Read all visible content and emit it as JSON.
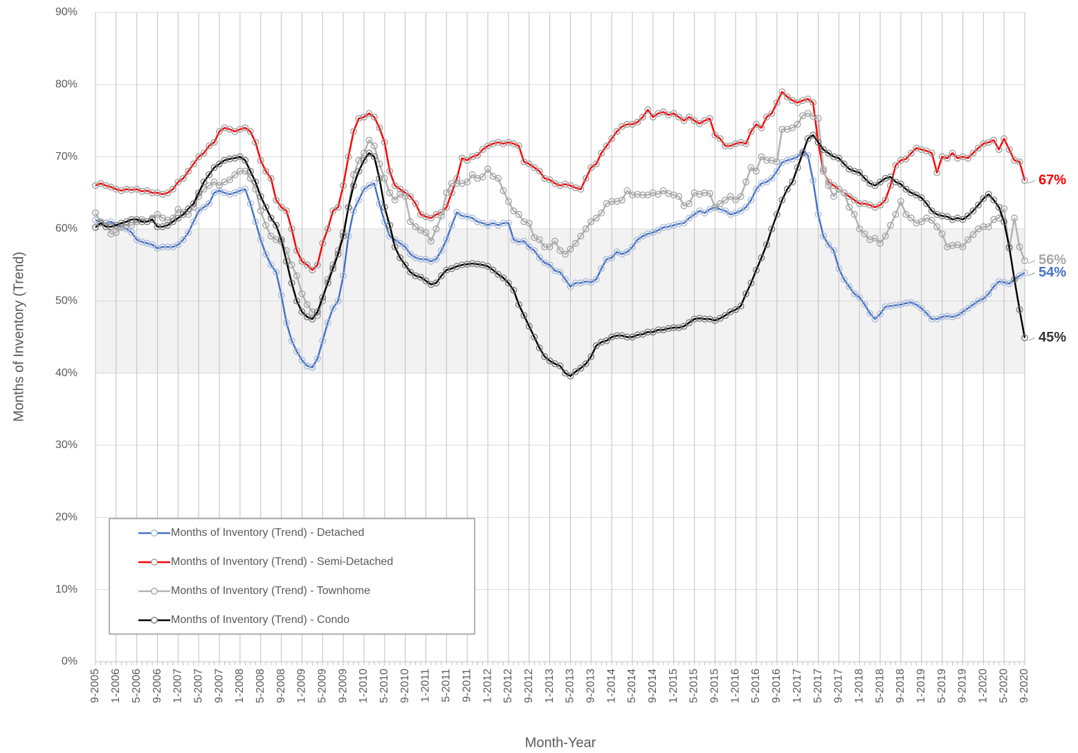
{
  "chart_data": {
    "type": "line",
    "x_label": "Month-Year",
    "y_label": "Months of Inventory (Trend)",
    "categories": [
      "9-2005",
      null,
      null,
      null,
      "1-2006",
      null,
      null,
      null,
      "5-2006",
      null,
      null,
      null,
      "9-2006",
      null,
      null,
      null,
      "1-2007",
      null,
      null,
      null,
      "5-2007",
      null,
      null,
      null,
      "9-2007",
      null,
      null,
      null,
      "1-2008",
      null,
      null,
      null,
      "5-2008",
      null,
      null,
      null,
      "9-2008",
      null,
      null,
      null,
      "1-2009",
      null,
      null,
      null,
      "5-2009",
      null,
      null,
      null,
      "9-2009",
      null,
      null,
      null,
      "1-2010",
      null,
      null,
      null,
      "5-2010",
      null,
      null,
      null,
      "9-2010",
      null,
      null,
      null,
      "1-2011",
      null,
      null,
      null,
      "5-2011",
      null,
      null,
      null,
      "9-2011",
      null,
      null,
      null,
      "1-2012",
      null,
      null,
      null,
      "5-2012",
      null,
      null,
      null,
      "9-2012",
      null,
      null,
      null,
      "1-2013",
      null,
      null,
      null,
      "5-2013",
      null,
      null,
      null,
      "9-2013",
      null,
      null,
      null,
      "1-2014",
      null,
      null,
      null,
      "5-2014",
      null,
      null,
      null,
      "9-2014",
      null,
      null,
      null,
      "1-2015",
      null,
      null,
      null,
      "5-2015",
      null,
      null,
      null,
      "9-2015",
      null,
      null,
      null,
      "1-2016",
      null,
      null,
      null,
      "5-2016",
      null,
      null,
      null,
      "9-2016",
      null,
      null,
      null,
      "1-2017",
      null,
      null,
      null,
      "5-2017",
      null,
      null,
      null,
      "9-2017",
      null,
      null,
      null,
      "1-2018",
      null,
      null,
      null,
      "5-2018",
      null,
      null,
      null,
      "9-2018",
      null,
      null,
      null,
      "1-2019",
      null,
      null,
      null,
      "5-2019",
      null,
      null,
      null,
      "9-2019",
      null,
      null,
      null,
      "1-2020",
      null,
      null,
      null,
      "5-2020",
      null,
      null,
      null,
      "9-2020"
    ],
    "series": [
      {
        "name": "Months of Inventory (Trend) - Detached",
        "color": "#4472c4",
        "marker_color": "#a9b8d8",
        "end_label": "54%",
        "values": [
          61.2,
          61,
          60.8,
          61,
          60.5,
          60.3,
          60,
          59.5,
          58.5,
          58.2,
          58,
          57.8,
          57.3,
          57.5,
          57.5,
          57.5,
          57.8,
          58.5,
          59.5,
          61,
          62.5,
          63,
          63.5,
          65,
          65.3,
          65,
          64.8,
          65,
          65.3,
          65.5,
          63.5,
          61,
          58.5,
          56.5,
          55,
          54,
          50.8,
          47,
          44.5,
          43,
          41.8,
          41,
          40.8,
          42,
          44.5,
          47,
          49,
          50,
          53.5,
          59,
          62.5,
          64,
          65.5,
          66,
          66.3,
          63.5,
          61,
          59,
          58.5,
          58,
          57.5,
          56.5,
          56,
          55.8,
          55.8,
          55.5,
          55.8,
          57,
          58.5,
          60.5,
          62.3,
          61.8,
          61.7,
          61.5,
          61,
          60.8,
          60.5,
          60.8,
          60.5,
          60.8,
          60.8,
          58.5,
          58.2,
          58.3,
          57.5,
          57,
          56,
          55.3,
          55,
          54.2,
          54,
          53,
          52,
          52.5,
          52.5,
          52.7,
          52.6,
          53,
          54.5,
          55.8,
          56,
          56.8,
          56.5,
          56.8,
          57.5,
          58.5,
          59,
          59.3,
          59.5,
          59.8,
          60.2,
          60.3,
          60.5,
          60.7,
          60.8,
          61.5,
          62,
          62.5,
          62.2,
          62.7,
          63,
          62.7,
          62.5,
          62,
          62.2,
          62.5,
          63,
          64,
          65.5,
          66.3,
          66.5,
          67,
          68,
          69.2,
          69.5,
          69.7,
          70,
          70.7,
          70.2,
          66.7,
          62,
          59,
          57.8,
          57,
          54.5,
          53,
          52,
          51,
          50.5,
          49.5,
          48.3,
          47.5,
          48.2,
          49.2,
          49.3,
          49.4,
          49.5,
          49.7,
          49.8,
          49.5,
          49,
          48.3,
          47.5,
          47.5,
          47.8,
          47.9,
          47.8,
          48,
          48.5,
          49,
          49.5,
          50,
          50.3,
          51,
          52,
          52.7,
          52.6,
          52.4,
          53,
          53.5,
          53.9
        ]
      },
      {
        "name": "Months of Inventory (Trend) - Semi-Detached",
        "color": "#ff0000",
        "marker_color": "#999999",
        "end_label": "67%",
        "values": [
          66,
          66.3,
          66,
          65.8,
          65.5,
          65.3,
          65.5,
          65.4,
          65.5,
          65.2,
          65.3,
          65,
          65,
          64.8,
          65,
          65.5,
          66.5,
          67,
          68,
          69,
          70,
          70.5,
          71.5,
          72,
          73.5,
          74,
          73.8,
          73.5,
          73.8,
          74,
          73.5,
          72,
          69.5,
          68,
          67,
          64,
          63,
          62.5,
          60,
          57,
          55.5,
          55,
          54.3,
          55,
          58,
          60,
          62.5,
          63,
          66,
          70,
          73.5,
          75.3,
          75.5,
          76,
          75.5,
          74,
          72,
          68,
          66,
          65.5,
          65,
          64.5,
          63.5,
          62,
          61.7,
          61.5,
          62,
          62.3,
          63,
          65,
          67,
          69.8,
          69.5,
          70,
          70.2,
          71,
          71.5,
          71.8,
          72,
          71.8,
          72,
          71.8,
          71.5,
          69.3,
          69,
          68.5,
          68,
          67,
          66.8,
          66.3,
          66,
          66.2,
          66,
          65.7,
          65.5,
          67,
          68.5,
          69,
          70.5,
          71.5,
          72.5,
          73.5,
          74.2,
          74.5,
          74.5,
          74.8,
          75.5,
          76.5,
          75.5,
          76,
          76.2,
          75.8,
          76,
          75.5,
          75,
          75.5,
          75,
          74.6,
          75,
          75.3,
          73,
          72.5,
          71.5,
          71.5,
          71.8,
          72,
          71.8,
          73.5,
          74.5,
          74,
          75.5,
          76,
          77.5,
          79,
          78.3,
          77.8,
          77.5,
          77.8,
          78,
          77.5,
          72,
          68,
          66.5,
          66,
          65.5,
          65,
          64.5,
          64,
          63.5,
          63.5,
          63.3,
          63,
          63.3,
          64,
          66,
          68.8,
          69.5,
          69.7,
          70.5,
          71.2,
          71,
          70.8,
          70.5,
          67.8,
          70,
          69.8,
          70.5,
          69.8,
          70,
          69.8,
          70.5,
          71.2,
          71.8,
          72,
          72.3,
          71,
          72.5,
          71,
          69.5,
          69.3,
          66.7
        ]
      },
      {
        "name": "Months of Inventory (Trend) - Townhome",
        "color": "#b3b3b3",
        "marker_color": "#a0a0a0",
        "end_label": "56%",
        "values": [
          62.2,
          61,
          60.8,
          59.3,
          59.5,
          60.2,
          60.5,
          60.5,
          61,
          61.3,
          61,
          61.5,
          62,
          61.5,
          61.2,
          61.5,
          62.7,
          62.3,
          62,
          63,
          64.5,
          65.5,
          66,
          66.5,
          66,
          66.5,
          66.8,
          67.5,
          68,
          68,
          67,
          65.5,
          62.5,
          60.5,
          59,
          58.5,
          58.2,
          57,
          55,
          53.5,
          51,
          49.5,
          48.5,
          48,
          50,
          53,
          55,
          57,
          59.5,
          63,
          67.5,
          69.5,
          70.5,
          72.3,
          71.5,
          69,
          67,
          65,
          64,
          64.8,
          64.5,
          61,
          60.3,
          59.8,
          59.5,
          58.3,
          60,
          61.8,
          65,
          66.3,
          66.3,
          66.3,
          66.5,
          67.5,
          67,
          67.2,
          68.3,
          67.3,
          67,
          65.3,
          63.8,
          62.5,
          62,
          61,
          60.8,
          58.8,
          58.5,
          57.5,
          57.5,
          58.3,
          57,
          56.5,
          57.2,
          58,
          59,
          60,
          61,
          61.5,
          62.2,
          63.5,
          63.8,
          63.8,
          64,
          65.3,
          64.7,
          64.8,
          64.7,
          64.7,
          65,
          64.8,
          65.3,
          64.9,
          64.7,
          64.5,
          63.2,
          63.5,
          65,
          64.8,
          65,
          64.9,
          63,
          63.5,
          64,
          64.5,
          64,
          64.5,
          66.5,
          68.5,
          68,
          70,
          69.5,
          69.5,
          69.3,
          73.8,
          73.8,
          74,
          74.5,
          75.7,
          76,
          75.6,
          75.3,
          68.3,
          66,
          64.5,
          65.5,
          65,
          63,
          62,
          60,
          59.3,
          58.5,
          58.7,
          58,
          59,
          60.5,
          62,
          63.8,
          62,
          61.5,
          60.8,
          61,
          61.5,
          61.2,
          60.3,
          59.3,
          57.5,
          57.7,
          57.8,
          57.5,
          58.5,
          59.2,
          60,
          60.3,
          60.3,
          61.3,
          61.5,
          62.8,
          57.3,
          61.5,
          57.5,
          55.6
        ]
      },
      {
        "name": "Months of Inventory (Trend) - Condo",
        "color": "#000000",
        "marker_color": "#777777",
        "end_label": "45%",
        "values": [
          60.2,
          60.8,
          60.3,
          60.3,
          60.5,
          60.8,
          61,
          61.3,
          61.3,
          61,
          61,
          61.3,
          60.3,
          60.3,
          60.5,
          61,
          61.5,
          62,
          62.8,
          63.5,
          65,
          66.5,
          67.5,
          68.5,
          69,
          69.5,
          69.7,
          69.8,
          70,
          69.5,
          68,
          66.5,
          64.5,
          63,
          61.5,
          60.5,
          58.5,
          55.5,
          52.5,
          50,
          48.5,
          47.8,
          47.5,
          48.5,
          50.5,
          52.5,
          54.5,
          56.5,
          59,
          63,
          66,
          68,
          69.5,
          70.5,
          70,
          67,
          63,
          60.5,
          57.5,
          56,
          55,
          54,
          53.5,
          53.3,
          52.8,
          52.3,
          52.5,
          53.5,
          54.3,
          54.5,
          54.8,
          55,
          55.1,
          55.2,
          55.1,
          55,
          54.8,
          54.3,
          53.7,
          53.2,
          52.5,
          51.5,
          49.5,
          48,
          46.5,
          45,
          43.5,
          42.3,
          41.7,
          41.3,
          41,
          40,
          39.6,
          40.2,
          40.7,
          41.3,
          42.3,
          43.8,
          44.3,
          44.5,
          45,
          45.2,
          45.2,
          45,
          45,
          45.3,
          45.4,
          45.7,
          45.7,
          46,
          46,
          46.2,
          46.3,
          46.3,
          46.5,
          47,
          47.5,
          47.6,
          47.5,
          47.5,
          47.3,
          47.6,
          48,
          48.5,
          48.8,
          49.3,
          51,
          52.5,
          54.3,
          56,
          57.8,
          60,
          62,
          64,
          65.5,
          66.5,
          68.5,
          70.5,
          72.5,
          73,
          72,
          71,
          70.5,
          70,
          69.8,
          69,
          68.3,
          68,
          67.8,
          67,
          66.3,
          66,
          66.5,
          67,
          67.2,
          66.5,
          66.2,
          65.5,
          65,
          64.7,
          64.3,
          63.5,
          62.5,
          62,
          61.8,
          61.7,
          61.3,
          61.5,
          61.3,
          61.8,
          62.5,
          63.3,
          64.2,
          64.8,
          64,
          63,
          61,
          57.5,
          53,
          48.8,
          44.9
        ]
      }
    ],
    "ylim": [
      0,
      90
    ],
    "yticks": [
      {
        "value": 0,
        "label": "0%"
      },
      {
        "value": 10,
        "label": "10%"
      },
      {
        "value": 20,
        "label": "20%"
      },
      {
        "value": 30,
        "label": "30%"
      },
      {
        "value": 40,
        "label": "40%"
      },
      {
        "value": 50,
        "label": "50%"
      },
      {
        "value": 60,
        "label": "60%"
      },
      {
        "value": 70,
        "label": "70%"
      },
      {
        "value": 80,
        "label": "80%"
      },
      {
        "value": 90,
        "label": "90%"
      }
    ],
    "shaded_band": [
      40,
      60
    ],
    "grid": true,
    "legend": "lower left"
  }
}
